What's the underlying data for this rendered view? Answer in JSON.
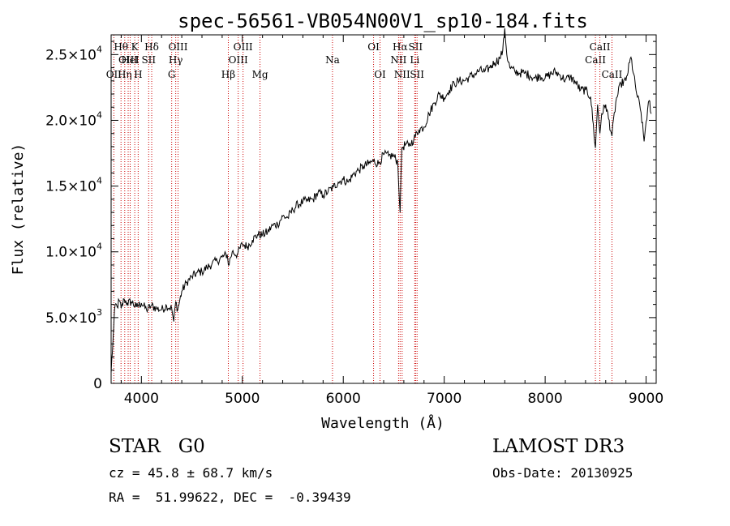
{
  "chart_data": {
    "type": "line",
    "title": "spec-56561-VB054N00V1_sp10-184.fits",
    "xlabel": "Wavelength (Å)",
    "ylabel": "Flux (relative)",
    "xlim": [
      3700,
      9100
    ],
    "ylim": [
      0,
      26500
    ],
    "x_ticks": [
      4000,
      5000,
      6000,
      7000,
      8000,
      9000
    ],
    "y_ticks": [
      {
        "value": 0,
        "mantissa": "0",
        "exponent": ""
      },
      {
        "value": 5000,
        "mantissa": "5.0×10",
        "exponent": "3"
      },
      {
        "value": 10000,
        "mantissa": "1.0×10",
        "exponent": "4"
      },
      {
        "value": 15000,
        "mantissa": "1.5×10",
        "exponent": "4"
      },
      {
        "value": 20000,
        "mantissa": "2.0×10",
        "exponent": "4"
      },
      {
        "value": 25000,
        "mantissa": "2.5×10",
        "exponent": "4"
      }
    ],
    "spectrum": {
      "name": "flux",
      "x": [
        3700,
        3720,
        3740,
        3760,
        3780,
        3800,
        3830,
        3860,
        3900,
        3950,
        4000,
        4050,
        4100,
        4150,
        4200,
        4250,
        4300,
        4320,
        4340,
        4360,
        4400,
        4450,
        4500,
        4550,
        4600,
        4650,
        4700,
        4750,
        4800,
        4850,
        4861,
        4900,
        4950,
        5000,
        5050,
        5100,
        5150,
        5200,
        5250,
        5300,
        5350,
        5400,
        5450,
        5500,
        5550,
        5600,
        5650,
        5700,
        5750,
        5800,
        5850,
        5900,
        5950,
        6000,
        6050,
        6100,
        6150,
        6200,
        6250,
        6300,
        6350,
        6400,
        6450,
        6500,
        6540,
        6563,
        6580,
        6620,
        6650,
        6700,
        6750,
        6800,
        6850,
        6900,
        6950,
        7000,
        7050,
        7100,
        7150,
        7200,
        7250,
        7300,
        7350,
        7400,
        7450,
        7500,
        7550,
        7580,
        7600,
        7620,
        7650,
        7700,
        7750,
        7800,
        7850,
        7900,
        7950,
        8000,
        8050,
        8100,
        8150,
        8200,
        8250,
        8300,
        8350,
        8400,
        8450,
        8498,
        8520,
        8542,
        8560,
        8600,
        8662,
        8700,
        8750,
        8800,
        8850,
        8900,
        8950,
        8980,
        9000,
        9030,
        9050
      ],
      "y": [
        800,
        3500,
        6000,
        5800,
        6300,
        5700,
        6400,
        6100,
        6200,
        5800,
        6100,
        5600,
        5900,
        5700,
        5600,
        5900,
        5700,
        4700,
        6200,
        5600,
        7000,
        7700,
        8100,
        8400,
        8500,
        8800,
        9100,
        9300,
        9600,
        9800,
        9000,
        10000,
        9800,
        10600,
        10400,
        10900,
        11300,
        11300,
        11500,
        12000,
        12100,
        12700,
        12600,
        13200,
        13600,
        13800,
        13900,
        14000,
        14500,
        14300,
        14600,
        14900,
        15300,
        15500,
        15300,
        15900,
        16200,
        16500,
        16700,
        16900,
        16700,
        17400,
        17300,
        17300,
        16800,
        13000,
        17900,
        18200,
        18000,
        18600,
        19300,
        19500,
        20500,
        21300,
        22000,
        21700,
        22300,
        22800,
        23000,
        23000,
        23300,
        23500,
        23800,
        23700,
        24000,
        24400,
        24700,
        25300,
        27000,
        25000,
        24000,
        23700,
        23600,
        23600,
        23400,
        23200,
        23400,
        23200,
        23500,
        23700,
        23400,
        23100,
        23300,
        22900,
        22300,
        22300,
        21800,
        17900,
        21200,
        19000,
        20500,
        21200,
        18800,
        21400,
        22800,
        23000,
        24800,
        22300,
        20600,
        18400,
        19900,
        21500,
        20500
      ]
    },
    "line_marks": [
      {
        "w": 3727,
        "label": "OII",
        "row": 3
      },
      {
        "w": 3798,
        "label": "Hθ",
        "row": 1
      },
      {
        "w": 3835,
        "label": "Hη",
        "row": 3
      },
      {
        "w": 3869,
        "label": "OIII",
        "row": 2
      },
      {
        "w": 3889,
        "label": "HeI",
        "row": 2
      },
      {
        "w": 3934,
        "label": "K",
        "row": 1
      },
      {
        "w": 3968,
        "label": "H",
        "row": 3
      },
      {
        "w": 4072,
        "label": "SII",
        "row": 2
      },
      {
        "w": 4102,
        "label": "Hδ",
        "row": 1
      },
      {
        "w": 4300,
        "label": "G",
        "row": 3
      },
      {
        "w": 4340,
        "label": "Hγ",
        "row": 2
      },
      {
        "w": 4363,
        "label": "OIII",
        "row": 1
      },
      {
        "w": 4861,
        "label": "Hβ",
        "row": 3
      },
      {
        "w": 4959,
        "label": "OIII",
        "row": 2
      },
      {
        "w": 5007,
        "label": "OIII",
        "row": 1
      },
      {
        "w": 5175,
        "label": "Mg",
        "row": 3
      },
      {
        "w": 5893,
        "label": "Na",
        "row": 2
      },
      {
        "w": 6300,
        "label": "OI",
        "row": 1
      },
      {
        "w": 6364,
        "label": "OI",
        "row": 3
      },
      {
        "w": 6548,
        "label": "NII",
        "row": 2
      },
      {
        "w": 6563,
        "label": "Hα",
        "row": 1
      },
      {
        "w": 6583,
        "label": "NII",
        "row": 3
      },
      {
        "w": 6708,
        "label": "Li",
        "row": 2
      },
      {
        "w": 6716,
        "label": "SII",
        "row": 1
      },
      {
        "w": 6731,
        "label": "SII",
        "row": 3
      },
      {
        "w": 8498,
        "label": "CaII",
        "row": 2
      },
      {
        "w": 8542,
        "label": "CaII",
        "row": 1
      },
      {
        "w": 8662,
        "label": "CaII",
        "row": 3
      }
    ],
    "mark_color": "#cc0000"
  },
  "footer": {
    "class_text": "STAR   G0",
    "survey": "LAMOST DR3",
    "cz": "cz = 45.8 ± 68.7 km/s",
    "obs_date": "Obs-Date: 20130925",
    "radec": "RA =  51.99622, DEC =  -0.39439"
  }
}
